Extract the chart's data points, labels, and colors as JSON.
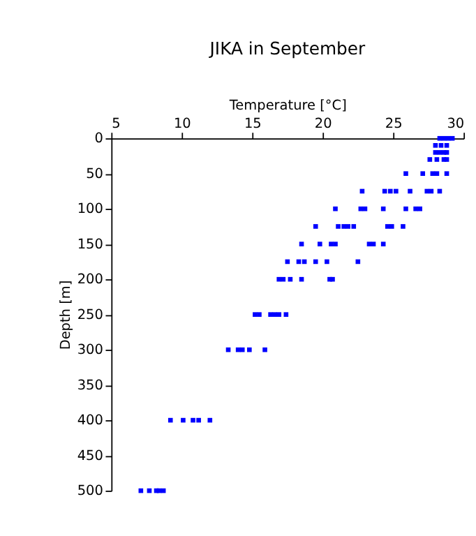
{
  "chart_data": {
    "type": "scatter",
    "title": "JIKA in September",
    "xlabel": "Temperature [°C]",
    "ylabel": "Depth [m]",
    "xlim": [
      5,
      30
    ],
    "xticks": [
      5,
      10,
      15,
      20,
      25,
      30
    ],
    "ylim": [
      500,
      0
    ],
    "yticks": [
      0,
      50,
      100,
      150,
      200,
      250,
      300,
      350,
      400,
      450,
      500
    ],
    "marker": "square",
    "grid": false,
    "series": [
      {
        "color": "#0000ff",
        "x": [
          28.3,
          28.6,
          28.9,
          29.2,
          28.0,
          28.4,
          28.8,
          28.0,
          28.3,
          28.6,
          28.8,
          27.6,
          28.1,
          28.6,
          28.8,
          25.9,
          27.1,
          27.8,
          28.1,
          28.8,
          22.8,
          24.4,
          24.8,
          25.2,
          26.2,
          27.4,
          27.7,
          28.3,
          20.9,
          22.7,
          23.0,
          24.3,
          25.9,
          26.6,
          26.9,
          19.5,
          21.1,
          21.5,
          21.8,
          22.2,
          24.6,
          24.9,
          25.7,
          18.5,
          19.8,
          20.6,
          20.9,
          23.3,
          23.6,
          24.3,
          17.5,
          18.3,
          18.7,
          19.5,
          20.3,
          22.5,
          16.9,
          17.2,
          17.7,
          18.5,
          20.5,
          20.7,
          15.2,
          15.5,
          16.3,
          16.6,
          16.9,
          17.4,
          13.3,
          14.0,
          14.3,
          14.8,
          15.9,
          9.2,
          10.1,
          10.8,
          11.2,
          12.0,
          7.1,
          7.7,
          8.2,
          8.4,
          8.7
        ],
        "values": [
          0,
          0,
          0,
          0,
          10,
          10,
          10,
          20,
          20,
          20,
          20,
          30,
          30,
          30,
          30,
          50,
          50,
          50,
          50,
          50,
          75,
          75,
          75,
          75,
          75,
          75,
          75,
          75,
          100,
          100,
          100,
          100,
          100,
          100,
          100,
          125,
          125,
          125,
          125,
          125,
          125,
          125,
          125,
          150,
          150,
          150,
          150,
          150,
          150,
          150,
          175,
          175,
          175,
          175,
          175,
          175,
          200,
          200,
          200,
          200,
          200,
          200,
          250,
          250,
          250,
          250,
          250,
          250,
          300,
          300,
          300,
          300,
          300,
          400,
          400,
          400,
          400,
          400,
          500,
          500,
          500,
          500,
          500
        ]
      }
    ]
  }
}
